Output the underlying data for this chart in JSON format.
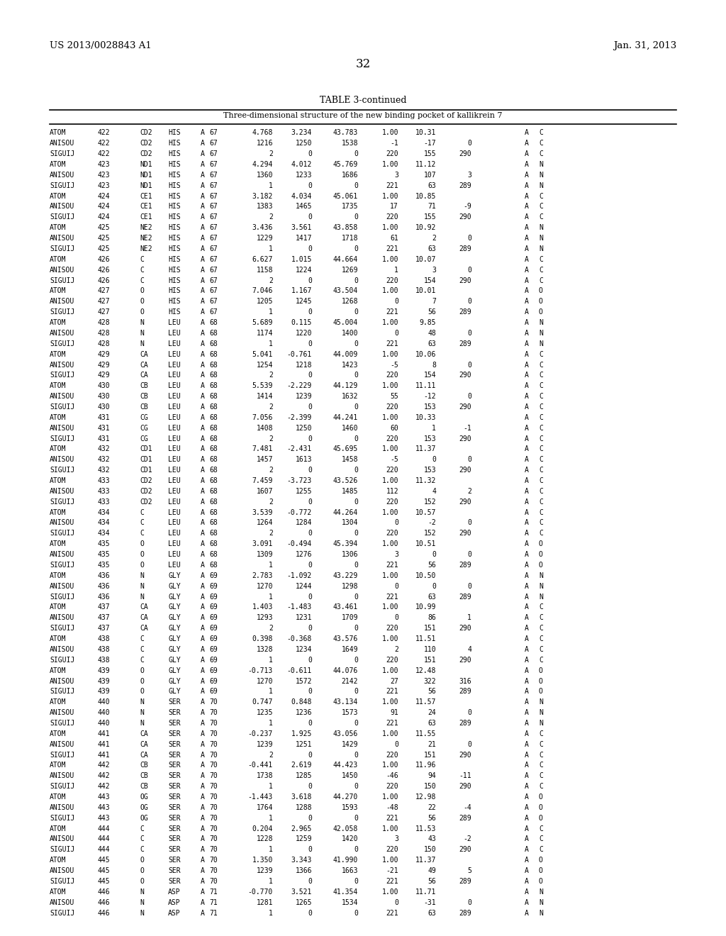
{
  "header_left": "US 2013/0028843 A1",
  "header_right": "Jan. 31, 2013",
  "page_number": "32",
  "table_title": "TABLE 3-continued",
  "table_subtitle": "Three-dimensional structure of the new binding pocket of kallikrein 7",
  "bg_color": "#ffffff",
  "text_color": "#000000",
  "rows": [
    [
      "ATOM",
      "422",
      "CD2",
      "HIS",
      "A",
      "67",
      "4.768",
      "3.234",
      "43.783",
      "1.00",
      "10.31",
      "",
      "",
      "",
      "A",
      "C"
    ],
    [
      "ANISOU",
      "422",
      "CD2",
      "HIS",
      "A",
      "67",
      "1216",
      "1250",
      "1538",
      "-1",
      "-17",
      "0",
      "",
      "",
      "A",
      "C"
    ],
    [
      "SIGUIJ",
      "422",
      "CD2",
      "HIS",
      "A",
      "67",
      "2",
      "0",
      "0",
      "220",
      "155",
      "290",
      "",
      "",
      "A",
      "C"
    ],
    [
      "ATOM",
      "423",
      "ND1",
      "HIS",
      "A",
      "67",
      "4.294",
      "4.012",
      "45.769",
      "1.00",
      "11.12",
      "",
      "",
      "",
      "A",
      "N"
    ],
    [
      "ANISOU",
      "423",
      "ND1",
      "HIS",
      "A",
      "67",
      "1360",
      "1233",
      "1686",
      "3",
      "107",
      "3",
      "",
      "",
      "A",
      "N"
    ],
    [
      "SIGUIJ",
      "423",
      "ND1",
      "HIS",
      "A",
      "67",
      "1",
      "0",
      "0",
      "221",
      "63",
      "289",
      "",
      "",
      "A",
      "N"
    ],
    [
      "ATOM",
      "424",
      "CE1",
      "HIS",
      "A",
      "67",
      "3.182",
      "4.034",
      "45.061",
      "1.00",
      "10.85",
      "",
      "",
      "",
      "A",
      "C"
    ],
    [
      "ANISOU",
      "424",
      "CE1",
      "HIS",
      "A",
      "67",
      "1383",
      "1465",
      "1735",
      "17",
      "71",
      "-9",
      "",
      "",
      "A",
      "C"
    ],
    [
      "SIGUIJ",
      "424",
      "CE1",
      "HIS",
      "A",
      "67",
      "2",
      "0",
      "0",
      "220",
      "155",
      "290",
      "",
      "",
      "A",
      "C"
    ],
    [
      "ATOM",
      "425",
      "NE2",
      "HIS",
      "A",
      "67",
      "3.436",
      "3.561",
      "43.858",
      "1.00",
      "10.92",
      "",
      "",
      "",
      "A",
      "N"
    ],
    [
      "ANISOU",
      "425",
      "NE2",
      "HIS",
      "A",
      "67",
      "1229",
      "1417",
      "1718",
      "61",
      "2",
      "0",
      "",
      "",
      "A",
      "N"
    ],
    [
      "SIGUIJ",
      "425",
      "NE2",
      "HIS",
      "A",
      "67",
      "1",
      "0",
      "0",
      "221",
      "63",
      "289",
      "",
      "",
      "A",
      "N"
    ],
    [
      "ATOM",
      "426",
      "C",
      "HIS",
      "A",
      "67",
      "6.627",
      "1.015",
      "44.664",
      "1.00",
      "10.07",
      "",
      "",
      "",
      "A",
      "C"
    ],
    [
      "ANISOU",
      "426",
      "C",
      "HIS",
      "A",
      "67",
      "1158",
      "1224",
      "1269",
      "1",
      "3",
      "0",
      "",
      "",
      "A",
      "C"
    ],
    [
      "SIGUIJ",
      "426",
      "C",
      "HIS",
      "A",
      "67",
      "2",
      "0",
      "0",
      "220",
      "154",
      "290",
      "",
      "",
      "A",
      "C"
    ],
    [
      "ATOM",
      "427",
      "O",
      "HIS",
      "A",
      "67",
      "7.046",
      "1.167",
      "43.504",
      "1.00",
      "10.01",
      "",
      "",
      "",
      "A",
      "O"
    ],
    [
      "ANISOU",
      "427",
      "O",
      "HIS",
      "A",
      "67",
      "1205",
      "1245",
      "1268",
      "0",
      "7",
      "0",
      "",
      "",
      "A",
      "O"
    ],
    [
      "SIGUIJ",
      "427",
      "O",
      "HIS",
      "A",
      "67",
      "1",
      "0",
      "0",
      "221",
      "56",
      "289",
      "",
      "",
      "A",
      "O"
    ],
    [
      "ATOM",
      "428",
      "N",
      "LEU",
      "A",
      "68",
      "5.689",
      "0.115",
      "45.004",
      "1.00",
      "9.85",
      "",
      "",
      "",
      "A",
      "N"
    ],
    [
      "ANISOU",
      "428",
      "N",
      "LEU",
      "A",
      "68",
      "1174",
      "1220",
      "1400",
      "0",
      "48",
      "0",
      "",
      "",
      "A",
      "N"
    ],
    [
      "SIGUIJ",
      "428",
      "N",
      "LEU",
      "A",
      "68",
      "1",
      "0",
      "0",
      "221",
      "63",
      "289",
      "",
      "",
      "A",
      "N"
    ],
    [
      "ATOM",
      "429",
      "CA",
      "LEU",
      "A",
      "68",
      "5.041",
      "-0.761",
      "44.009",
      "1.00",
      "10.06",
      "",
      "",
      "",
      "A",
      "C"
    ],
    [
      "ANISOU",
      "429",
      "CA",
      "LEU",
      "A",
      "68",
      "1254",
      "1218",
      "1423",
      "-5",
      "8",
      "0",
      "",
      "",
      "A",
      "C"
    ],
    [
      "SIGUIJ",
      "429",
      "CA",
      "LEU",
      "A",
      "68",
      "2",
      "0",
      "0",
      "220",
      "154",
      "290",
      "",
      "",
      "A",
      "C"
    ],
    [
      "ATOM",
      "430",
      "CB",
      "LEU",
      "A",
      "68",
      "5.539",
      "-2.229",
      "44.129",
      "1.00",
      "11.11",
      "",
      "",
      "",
      "A",
      "C"
    ],
    [
      "ANISOU",
      "430",
      "CB",
      "LEU",
      "A",
      "68",
      "1414",
      "1239",
      "1632",
      "55",
      "-12",
      "0",
      "",
      "",
      "A",
      "C"
    ],
    [
      "SIGUIJ",
      "430",
      "CB",
      "LEU",
      "A",
      "68",
      "2",
      "0",
      "0",
      "220",
      "153",
      "290",
      "",
      "",
      "A",
      "C"
    ],
    [
      "ATOM",
      "431",
      "CG",
      "LEU",
      "A",
      "68",
      "7.056",
      "-2.399",
      "44.241",
      "1.00",
      "10.33",
      "",
      "",
      "",
      "A",
      "C"
    ],
    [
      "ANISOU",
      "431",
      "CG",
      "LEU",
      "A",
      "68",
      "1408",
      "1250",
      "1460",
      "60",
      "1",
      "-1",
      "",
      "",
      "A",
      "C"
    ],
    [
      "SIGUIJ",
      "431",
      "CG",
      "LEU",
      "A",
      "68",
      "2",
      "0",
      "0",
      "220",
      "153",
      "290",
      "",
      "",
      "A",
      "C"
    ],
    [
      "ATOM",
      "432",
      "CD1",
      "LEU",
      "A",
      "68",
      "7.481",
      "-2.431",
      "45.695",
      "1.00",
      "11.37",
      "",
      "",
      "",
      "A",
      "C"
    ],
    [
      "ANISOU",
      "432",
      "CD1",
      "LEU",
      "A",
      "68",
      "1457",
      "1613",
      "1458",
      "-5",
      "0",
      "0",
      "",
      "",
      "A",
      "C"
    ],
    [
      "SIGUIJ",
      "432",
      "CD1",
      "LEU",
      "A",
      "68",
      "2",
      "0",
      "0",
      "220",
      "153",
      "290",
      "",
      "",
      "A",
      "C"
    ],
    [
      "ATOM",
      "433",
      "CD2",
      "LEU",
      "A",
      "68",
      "7.459",
      "-3.723",
      "43.526",
      "1.00",
      "11.32",
      "",
      "",
      "",
      "A",
      "C"
    ],
    [
      "ANISOU",
      "433",
      "CD2",
      "LEU",
      "A",
      "68",
      "1607",
      "1255",
      "1485",
      "112",
      "4",
      "2",
      "",
      "",
      "A",
      "C"
    ],
    [
      "SIGUIJ",
      "433",
      "CD2",
      "LEU",
      "A",
      "68",
      "2",
      "0",
      "0",
      "220",
      "152",
      "290",
      "",
      "",
      "A",
      "C"
    ],
    [
      "ATOM",
      "434",
      "C",
      "LEU",
      "A",
      "68",
      "3.539",
      "-0.772",
      "44.264",
      "1.00",
      "10.57",
      "",
      "",
      "",
      "A",
      "C"
    ],
    [
      "ANISOU",
      "434",
      "C",
      "LEU",
      "A",
      "68",
      "1264",
      "1284",
      "1304",
      "0",
      "-2",
      "0",
      "",
      "",
      "A",
      "C"
    ],
    [
      "SIGUIJ",
      "434",
      "C",
      "LEU",
      "A",
      "68",
      "2",
      "0",
      "0",
      "220",
      "152",
      "290",
      "",
      "",
      "A",
      "C"
    ],
    [
      "ATOM",
      "435",
      "O",
      "LEU",
      "A",
      "68",
      "3.091",
      "-0.494",
      "45.394",
      "1.00",
      "10.51",
      "",
      "",
      "",
      "A",
      "O"
    ],
    [
      "ANISOU",
      "435",
      "O",
      "LEU",
      "A",
      "68",
      "1309",
      "1276",
      "1306",
      "3",
      "0",
      "0",
      "",
      "",
      "A",
      "O"
    ],
    [
      "SIGUIJ",
      "435",
      "O",
      "LEU",
      "A",
      "68",
      "1",
      "0",
      "0",
      "221",
      "56",
      "289",
      "",
      "",
      "A",
      "O"
    ],
    [
      "ATOM",
      "436",
      "N",
      "GLY",
      "A",
      "69",
      "2.783",
      "-1.092",
      "43.229",
      "1.00",
      "10.50",
      "",
      "",
      "",
      "A",
      "N"
    ],
    [
      "ANISOU",
      "436",
      "N",
      "GLY",
      "A",
      "69",
      "1270",
      "1244",
      "1298",
      "0",
      "0",
      "0",
      "",
      "",
      "A",
      "N"
    ],
    [
      "SIGUIJ",
      "436",
      "N",
      "GLY",
      "A",
      "69",
      "1",
      "0",
      "0",
      "221",
      "63",
      "289",
      "",
      "",
      "A",
      "N"
    ],
    [
      "ATOM",
      "437",
      "CA",
      "GLY",
      "A",
      "69",
      "1.403",
      "-1.483",
      "43.461",
      "1.00",
      "10.99",
      "",
      "",
      "",
      "A",
      "C"
    ],
    [
      "ANISOU",
      "437",
      "CA",
      "GLY",
      "A",
      "69",
      "1293",
      "1231",
      "1709",
      "0",
      "86",
      "1",
      "",
      "",
      "A",
      "C"
    ],
    [
      "SIGUIJ",
      "437",
      "CA",
      "GLY",
      "A",
      "69",
      "2",
      "0",
      "0",
      "220",
      "151",
      "290",
      "",
      "",
      "A",
      "C"
    ],
    [
      "ATOM",
      "438",
      "C",
      "GLY",
      "A",
      "69",
      "0.398",
      "-0.368",
      "43.576",
      "1.00",
      "11.51",
      "",
      "",
      "",
      "A",
      "C"
    ],
    [
      "ANISOU",
      "438",
      "C",
      "GLY",
      "A",
      "69",
      "1328",
      "1234",
      "1649",
      "2",
      "110",
      "4",
      "",
      "",
      "A",
      "C"
    ],
    [
      "SIGUIJ",
      "438",
      "C",
      "GLY",
      "A",
      "69",
      "1",
      "0",
      "0",
      "220",
      "151",
      "290",
      "",
      "",
      "A",
      "C"
    ],
    [
      "ATOM",
      "439",
      "O",
      "GLY",
      "A",
      "69",
      "-0.713",
      "-0.611",
      "44.076",
      "1.00",
      "12.48",
      "",
      "",
      "",
      "A",
      "O"
    ],
    [
      "ANISOU",
      "439",
      "O",
      "GLY",
      "A",
      "69",
      "1270",
      "1572",
      "2142",
      "27",
      "322",
      "316",
      "",
      "",
      "A",
      "O"
    ],
    [
      "SIGUIJ",
      "439",
      "O",
      "GLY",
      "A",
      "69",
      "1",
      "0",
      "0",
      "221",
      "56",
      "289",
      "",
      "",
      "A",
      "O"
    ],
    [
      "ATOM",
      "440",
      "N",
      "SER",
      "A",
      "70",
      "0.747",
      "0.848",
      "43.134",
      "1.00",
      "11.57",
      "",
      "",
      "",
      "A",
      "N"
    ],
    [
      "ANISOU",
      "440",
      "N",
      "SER",
      "A",
      "70",
      "1235",
      "1236",
      "1573",
      "91",
      "24",
      "0",
      "",
      "",
      "A",
      "N"
    ],
    [
      "SIGUIJ",
      "440",
      "N",
      "SER",
      "A",
      "70",
      "1",
      "0",
      "0",
      "221",
      "63",
      "289",
      "",
      "",
      "A",
      "N"
    ],
    [
      "ATOM",
      "441",
      "CA",
      "SER",
      "A",
      "70",
      "-0.237",
      "1.925",
      "43.056",
      "1.00",
      "11.55",
      "",
      "",
      "",
      "A",
      "C"
    ],
    [
      "ANISOU",
      "441",
      "CA",
      "SER",
      "A",
      "70",
      "1239",
      "1251",
      "1429",
      "0",
      "21",
      "0",
      "",
      "",
      "A",
      "C"
    ],
    [
      "SIGUIJ",
      "441",
      "CA",
      "SER",
      "A",
      "70",
      "2",
      "0",
      "0",
      "220",
      "151",
      "290",
      "",
      "",
      "A",
      "C"
    ],
    [
      "ATOM",
      "442",
      "CB",
      "SER",
      "A",
      "70",
      "-0.441",
      "2.619",
      "44.423",
      "1.00",
      "11.96",
      "",
      "",
      "",
      "A",
      "C"
    ],
    [
      "ANISOU",
      "442",
      "CB",
      "SER",
      "A",
      "70",
      "1738",
      "1285",
      "1450",
      "-46",
      "94",
      "-11",
      "",
      "",
      "A",
      "C"
    ],
    [
      "SIGUIJ",
      "442",
      "CB",
      "SER",
      "A",
      "70",
      "1",
      "0",
      "0",
      "220",
      "150",
      "290",
      "",
      "",
      "A",
      "C"
    ],
    [
      "ATOM",
      "443",
      "OG",
      "SER",
      "A",
      "70",
      "-1.443",
      "3.618",
      "44.270",
      "1.00",
      "12.98",
      "",
      "",
      "",
      "A",
      "O"
    ],
    [
      "ANISOU",
      "443",
      "OG",
      "SER",
      "A",
      "70",
      "1764",
      "1288",
      "1593",
      "-48",
      "22",
      "-4",
      "",
      "",
      "A",
      "O"
    ],
    [
      "SIGUIJ",
      "443",
      "OG",
      "SER",
      "A",
      "70",
      "1",
      "0",
      "0",
      "221",
      "56",
      "289",
      "",
      "",
      "A",
      "O"
    ],
    [
      "ATOM",
      "444",
      "C",
      "SER",
      "A",
      "70",
      "0.204",
      "2.965",
      "42.058",
      "1.00",
      "11.53",
      "",
      "",
      "",
      "A",
      "C"
    ],
    [
      "ANISOU",
      "444",
      "C",
      "SER",
      "A",
      "70",
      "1228",
      "1259",
      "1420",
      "3",
      "43",
      "-2",
      "",
      "",
      "A",
      "C"
    ],
    [
      "SIGUIJ",
      "444",
      "C",
      "SER",
      "A",
      "70",
      "1",
      "0",
      "0",
      "220",
      "150",
      "290",
      "",
      "",
      "A",
      "C"
    ],
    [
      "ATOM",
      "445",
      "O",
      "SER",
      "A",
      "70",
      "1.350",
      "3.343",
      "41.990",
      "1.00",
      "11.37",
      "",
      "",
      "",
      "A",
      "O"
    ],
    [
      "ANISOU",
      "445",
      "O",
      "SER",
      "A",
      "70",
      "1239",
      "1366",
      "1663",
      "-21",
      "49",
      "5",
      "",
      "",
      "A",
      "O"
    ],
    [
      "SIGUIJ",
      "445",
      "O",
      "SER",
      "A",
      "70",
      "1",
      "0",
      "0",
      "221",
      "56",
      "289",
      "",
      "",
      "A",
      "O"
    ],
    [
      "ATOM",
      "446",
      "N",
      "ASP",
      "A",
      "71",
      "-0.770",
      "3.521",
      "41.354",
      "1.00",
      "11.71",
      "",
      "",
      "",
      "A",
      "N"
    ],
    [
      "ANISOU",
      "446",
      "N",
      "ASP",
      "A",
      "71",
      "1281",
      "1265",
      "1534",
      "0",
      "-31",
      "0",
      "",
      "",
      "A",
      "N"
    ],
    [
      "SIGUIJ",
      "446",
      "N",
      "ASP",
      "A",
      "71",
      "1",
      "0",
      "0",
      "221",
      "63",
      "289",
      "",
      "",
      "A",
      "N"
    ]
  ]
}
